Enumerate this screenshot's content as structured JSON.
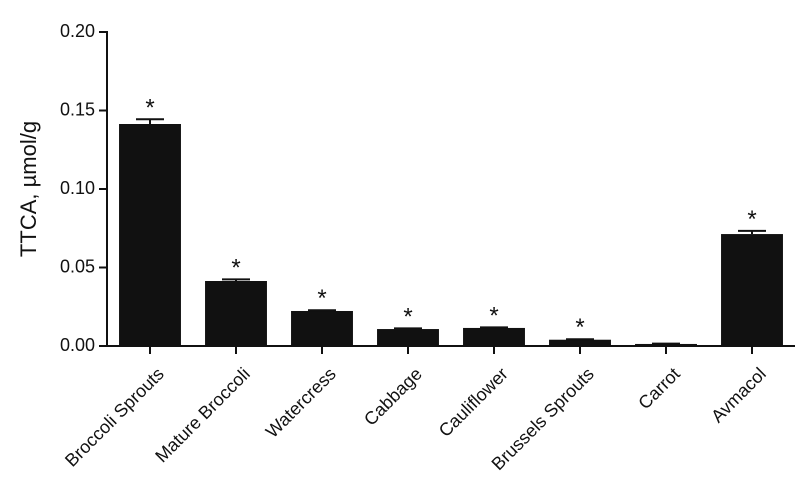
{
  "chart_data": {
    "type": "bar",
    "y_label": "TTCA,  µmol/g",
    "categories": [
      "Broccoli Sprouts",
      "Mature Broccoli",
      "Watercress",
      "Cabbage",
      "Cauliflower",
      "Brussels Sprouts",
      "Carrot",
      "Avmacol"
    ],
    "values": [
      0.1414,
      0.0414,
      0.0223,
      0.0108,
      0.0115,
      0.004,
      0.0013,
      0.0713
    ],
    "errors": [
      0.003,
      0.001,
      0.0005,
      0.0004,
      0.0004,
      0.0003,
      0.0002,
      0.002
    ],
    "significance": [
      "*",
      "*",
      "*",
      "*",
      "*",
      "*",
      null,
      "*"
    ],
    "color": "#111111",
    "ylim": [
      0,
      0.2
    ],
    "yticks": [
      {
        "value": 0,
        "label": "0.00"
      },
      {
        "value": 0.05,
        "label": "0.05"
      },
      {
        "value": 0.1,
        "label": "0.10"
      },
      {
        "value": 0.15,
        "label": "0.15"
      },
      {
        "value": 0.2,
        "label": "0.20"
      }
    ],
    "grid": false
  }
}
